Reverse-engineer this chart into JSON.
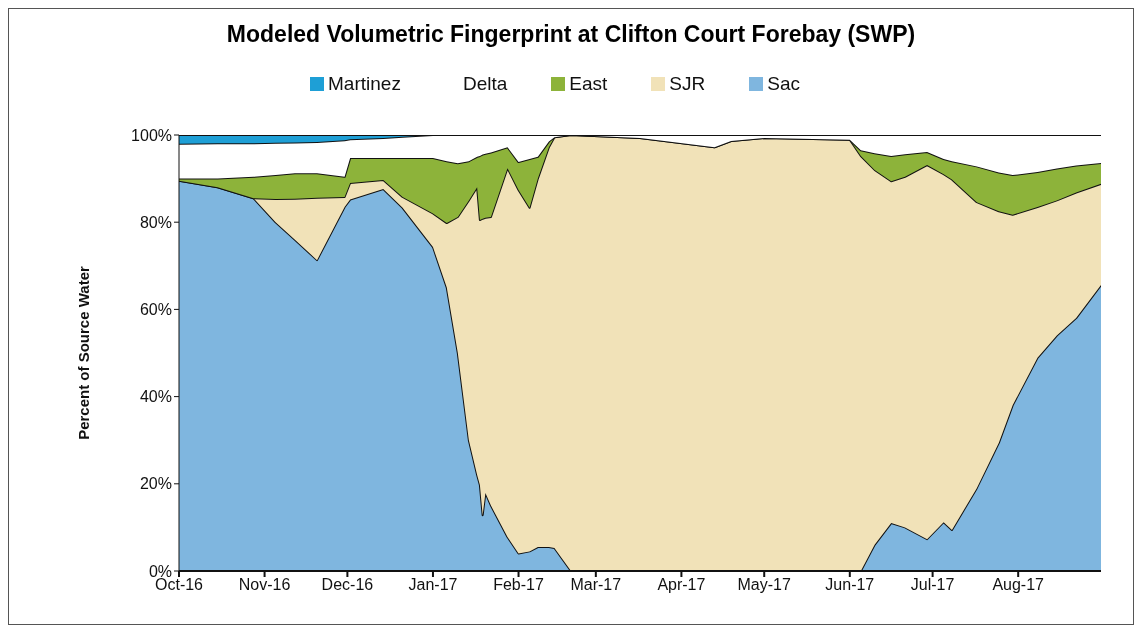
{
  "chart_data": {
    "type": "area",
    "stacked": true,
    "title": "Modeled Volumetric Fingerprint at Clifton Court Forebay (SWP)",
    "ylabel": "Percent of Source Water",
    "legend": "top",
    "grid": false,
    "x": [
      "2016-10-01",
      "2016-10-15",
      "2016-10-28",
      "2016-11-05",
      "2016-11-12",
      "2016-11-20",
      "2016-11-30",
      "2016-12-02",
      "2016-12-14",
      "2016-12-21",
      "2017-01-01",
      "2017-01-06",
      "2017-01-10",
      "2017-01-14",
      "2017-01-17",
      "2017-01-18",
      "2017-01-19",
      "2017-01-20",
      "2017-01-22",
      "2017-01-28",
      "2017-02-01",
      "2017-02-05",
      "2017-02-08",
      "2017-02-12",
      "2017-02-14",
      "2017-02-20",
      "2017-03-17",
      "2017-04-13",
      "2017-04-19",
      "2017-05-01",
      "2017-06-01",
      "2017-06-05",
      "2017-06-10",
      "2017-06-16",
      "2017-06-21",
      "2017-06-29",
      "2017-07-05",
      "2017-07-08",
      "2017-07-17",
      "2017-07-25",
      "2017-07-30",
      "2017-08-08",
      "2017-08-15",
      "2017-08-22",
      "2017-08-31"
    ],
    "series": [
      {
        "name": "Sac",
        "color": "#7fb6df",
        "values": [
          89.5,
          88,
          85.5,
          80,
          76,
          71.3,
          83.5,
          85.2,
          87.6,
          83.3,
          74.3,
          65,
          50,
          30,
          22,
          19.7,
          12.8,
          17.9,
          15,
          7.8,
          4,
          4.5,
          5.5,
          5.5,
          5.3,
          0,
          0,
          0,
          0,
          0,
          0,
          0,
          6,
          11,
          10,
          7.3,
          11.2,
          9.4,
          19,
          29.4,
          38,
          48.9,
          54,
          58,
          65.6
        ]
      },
      {
        "name": "SJR",
        "color": "#f1e2b8",
        "values": [
          0,
          0,
          0,
          5.3,
          9.4,
          14.3,
          2.3,
          3.8,
          2.1,
          2.5,
          7.7,
          14.8,
          31.2,
          55,
          66,
          60.8,
          68,
          63.1,
          66.2,
          84.6,
          83.4,
          78.8,
          84.5,
          91.7,
          94.2,
          100,
          99.3,
          97.2,
          98.6,
          99.3,
          98.9,
          95.2,
          86,
          78.4,
          80.4,
          85.8,
          79.8,
          80.4,
          65.6,
          53.1,
          43.7,
          34.6,
          31,
          28.8,
          23.2
        ]
      },
      {
        "name": "East",
        "color": "#8db33a",
        "values": [
          0.5,
          2,
          4.9,
          5.5,
          5.8,
          5.6,
          4.6,
          5.7,
          5,
          8.9,
          12.7,
          14.2,
          12.3,
          9,
          7,
          14.7,
          14.7,
          14.7,
          14.8,
          4.8,
          6.4,
          11.2,
          5,
          1.3,
          0,
          0,
          0,
          0,
          0,
          0,
          0,
          1.3,
          3.8,
          5.8,
          5.2,
          3,
          3.5,
          4.2,
          8.2,
          8.9,
          9.1,
          8,
          7.3,
          6.2,
          4.8
        ]
      },
      {
        "name": "Delta",
        "color": "#ffffff",
        "values": [
          8,
          8.1,
          7.7,
          7.4,
          7.1,
          7.2,
          8.4,
          4.3,
          4.6,
          4.9,
          5.3,
          6,
          6.5,
          6,
          5,
          4.8,
          4.5,
          4.3,
          4,
          2.8,
          6.2,
          5.5,
          5,
          1.5,
          0.5,
          0,
          0.7,
          2.8,
          1.4,
          0.7,
          1.1,
          3.5,
          4.2,
          4.8,
          4.4,
          3.9,
          5.5,
          6,
          7.2,
          8.6,
          9.2,
          8.5,
          7.7,
          7,
          6.4
        ]
      },
      {
        "name": "Martinez",
        "color": "#1e9fd6",
        "values": [
          2,
          1.9,
          1.9,
          1.8,
          1.7,
          1.6,
          1.2,
          1,
          0.7,
          0.4,
          0,
          0,
          0,
          0,
          0,
          0,
          0,
          0,
          0,
          0,
          0,
          0,
          0,
          0,
          0,
          0,
          0,
          0,
          0,
          0,
          0,
          0,
          0,
          0,
          0,
          0,
          0,
          0,
          0,
          0,
          0,
          0,
          0,
          0,
          0
        ]
      }
    ],
    "xlim": [
      "2016-10-01",
      "2017-08-31"
    ],
    "xticks": [
      {
        "value": "2016-10-01",
        "label": "Oct-16"
      },
      {
        "value": "2016-11-01",
        "label": "Nov-16"
      },
      {
        "value": "2016-12-01",
        "label": "Dec-16"
      },
      {
        "value": "2017-01-01",
        "label": "Jan-17"
      },
      {
        "value": "2017-02-01",
        "label": "Feb-17"
      },
      {
        "value": "2017-03-01",
        "label": "Mar-17"
      },
      {
        "value": "2017-04-01",
        "label": "Apr-17"
      },
      {
        "value": "2017-05-01",
        "label": "May-17"
      },
      {
        "value": "2017-06-01",
        "label": "Jun-17"
      },
      {
        "value": "2017-07-01",
        "label": "Jul-17"
      },
      {
        "value": "2017-08-01",
        "label": "Aug-17"
      }
    ],
    "ylim": [
      0,
      100
    ],
    "yticks": [
      {
        "value": 0,
        "label": "0%"
      },
      {
        "value": 20,
        "label": "20%"
      },
      {
        "value": 40,
        "label": "40%"
      },
      {
        "value": 60,
        "label": "60%"
      },
      {
        "value": 80,
        "label": "80%"
      },
      {
        "value": 100,
        "label": "100%"
      }
    ]
  }
}
